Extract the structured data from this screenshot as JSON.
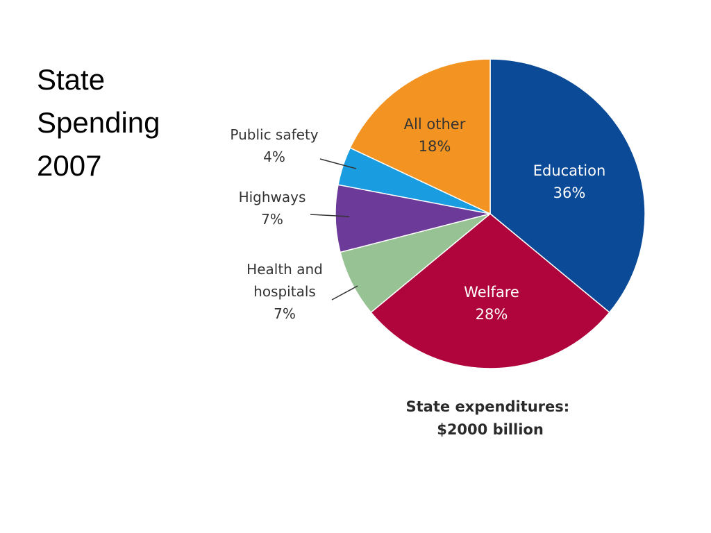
{
  "slide": {
    "title_lines": [
      "State",
      "Spending",
      "2007"
    ]
  },
  "chart_data": {
    "type": "pie",
    "title": "State Spending 2007",
    "caption_lines": [
      "State expenditures:",
      "$2000 billion"
    ],
    "total": "$2000 billion",
    "unit": "%",
    "slices": [
      {
        "label_lines": [
          "Education"
        ],
        "value": 36,
        "value_label": "36%",
        "color": "#0b4a97",
        "text_color": "#ffffff",
        "label_placement": "inside"
      },
      {
        "label_lines": [
          "Welfare"
        ],
        "value": 28,
        "value_label": "28%",
        "color": "#b0043c",
        "text_color": "#ffffff",
        "label_placement": "inside"
      },
      {
        "label_lines": [
          "Health and",
          "hospitals"
        ],
        "value": 7,
        "value_label": "7%",
        "color": "#97c394",
        "text_color": "#333333",
        "label_placement": "outside"
      },
      {
        "label_lines": [
          "Highways"
        ],
        "value": 7,
        "value_label": "7%",
        "color": "#6c3a98",
        "text_color": "#333333",
        "label_placement": "outside"
      },
      {
        "label_lines": [
          "Public safety"
        ],
        "value": 4,
        "value_label": "4%",
        "color": "#1a9de0",
        "text_color": "#333333",
        "label_placement": "outside"
      },
      {
        "label_lines": [
          "All other"
        ],
        "value": 18,
        "value_label": "18%",
        "color": "#f39422",
        "text_color": "#333333",
        "label_placement": "inside"
      }
    ]
  }
}
